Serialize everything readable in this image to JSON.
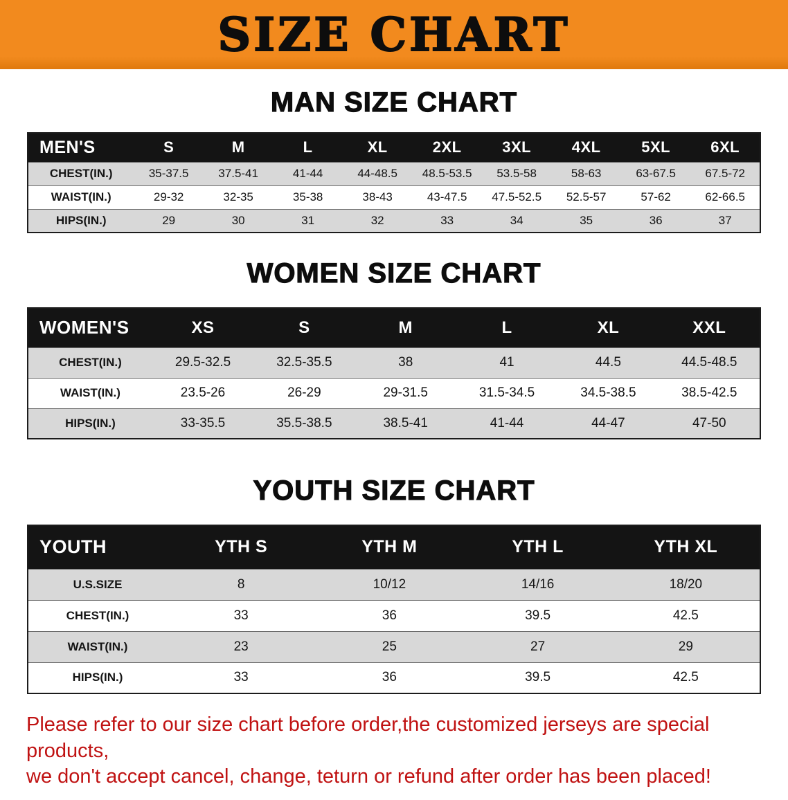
{
  "banner": {
    "title": "SIZE CHART"
  },
  "theme": {
    "banner_bg": "#F28A1E",
    "banner_edge": "#E0790D",
    "table_header_bg": "#141414",
    "row_alt_bg": "#D8D8D8",
    "notice_color": "#C01212"
  },
  "sections": [
    {
      "id": "men",
      "heading": "MAN SIZE CHART",
      "table": {
        "header": [
          "MEN'S",
          "S",
          "M",
          "L",
          "XL",
          "2XL",
          "3XL",
          "4XL",
          "5XL",
          "6XL"
        ],
        "rows": [
          [
            "CHEST(IN.)",
            "35-37.5",
            "37.5-41",
            "41-44",
            "44-48.5",
            "48.5-53.5",
            "53.5-58",
            "58-63",
            "63-67.5",
            "67.5-72"
          ],
          [
            "WAIST(IN.)",
            "29-32",
            "32-35",
            "35-38",
            "38-43",
            "43-47.5",
            "47.5-52.5",
            "52.5-57",
            "57-62",
            "62-66.5"
          ],
          [
            "HIPS(IN.)",
            "29",
            "30",
            "31",
            "32",
            "33",
            "34",
            "35",
            "36",
            "37"
          ]
        ]
      }
    },
    {
      "id": "women",
      "heading": "WOMEN SIZE CHART",
      "table": {
        "header": [
          "WOMEN'S",
          "XS",
          "S",
          "M",
          "L",
          "XL",
          "XXL"
        ],
        "rows": [
          [
            "CHEST(IN.)",
            "29.5-32.5",
            "32.5-35.5",
            "38",
            "41",
            "44.5",
            "44.5-48.5"
          ],
          [
            "WAIST(IN.)",
            "23.5-26",
            "26-29",
            "29-31.5",
            "31.5-34.5",
            "34.5-38.5",
            "38.5-42.5"
          ],
          [
            "HIPS(IN.)",
            "33-35.5",
            "35.5-38.5",
            "38.5-41",
            "41-44",
            "44-47",
            "47-50"
          ]
        ]
      }
    },
    {
      "id": "youth",
      "heading": "YOUTH SIZE CHART",
      "table": {
        "header": [
          "YOUTH",
          "YTH S",
          "YTH M",
          "YTH L",
          "YTH XL"
        ],
        "rows": [
          [
            "U.S.SIZE",
            "8",
            "10/12",
            "14/16",
            "18/20"
          ],
          [
            "CHEST(IN.)",
            "33",
            "36",
            "39.5",
            "42.5"
          ],
          [
            "WAIST(IN.)",
            "23",
            "25",
            "27",
            "29"
          ],
          [
            "HIPS(IN.)",
            "33",
            "36",
            "39.5",
            "42.5"
          ]
        ]
      }
    }
  ],
  "footer": {
    "lines": [
      "Please refer to our size chart before order,the customized jerseys are special products,",
      "we don't accept cancel, change, teturn or refund after order has been placed!"
    ]
  }
}
